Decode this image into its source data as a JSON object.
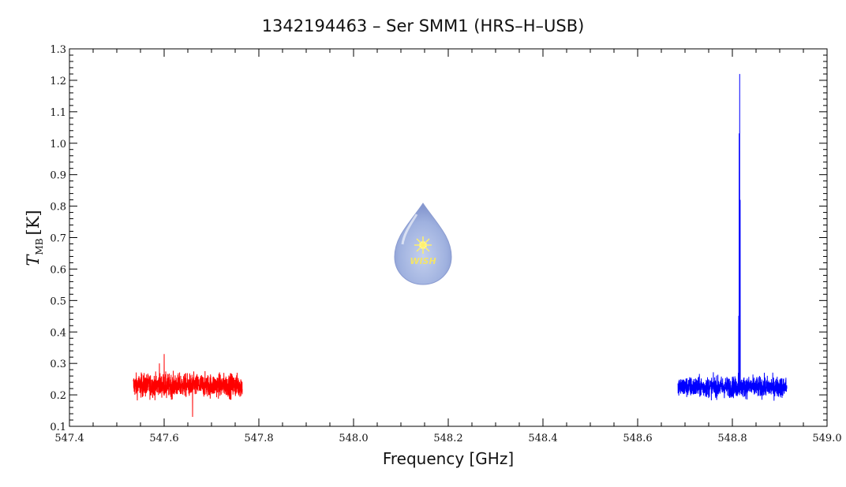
{
  "chart_data": {
    "type": "line",
    "title": "1342194463 – Ser SMM1 (HRS–H–USB)",
    "xlabel": "Frequency [GHz]",
    "ylabel_main": "T",
    "ylabel_sub": "MB",
    "ylabel_unit": "[K]",
    "xlim": [
      547.4,
      549.0
    ],
    "ylim": [
      0.1,
      1.3
    ],
    "xticks": [
      "547.4",
      "547.6",
      "547.8",
      "548.0",
      "548.2",
      "548.4",
      "548.6",
      "548.8",
      "549.0"
    ],
    "yticks": [
      "0.1",
      "0.2",
      "0.3",
      "0.4",
      "0.5",
      "0.6",
      "0.7",
      "0.8",
      "0.9",
      "1.0",
      "1.1",
      "1.2",
      "1.3"
    ],
    "logo_text": "WISH",
    "series": [
      {
        "color": "#ff0000",
        "x_range": [
          547.535,
          547.765
        ],
        "baseline": 0.23,
        "noise": 0.018,
        "features": [
          {
            "x": 547.6,
            "y": 0.33
          },
          {
            "x": 547.59,
            "y": 0.3
          },
          {
            "x": 547.605,
            "y": 0.19
          },
          {
            "x": 547.66,
            "y": 0.13
          }
        ]
      },
      {
        "color": "#0000ff",
        "x_range": [
          548.685,
          548.915
        ],
        "baseline": 0.225,
        "noise": 0.016,
        "features": [
          {
            "x": 548.8155,
            "y": 1.22
          },
          {
            "x": 548.8145,
            "y": 1.03
          },
          {
            "x": 548.8165,
            "y": 0.82
          },
          {
            "x": 548.8135,
            "y": 0.45
          },
          {
            "x": 548.8125,
            "y": 0.27
          }
        ]
      }
    ]
  }
}
